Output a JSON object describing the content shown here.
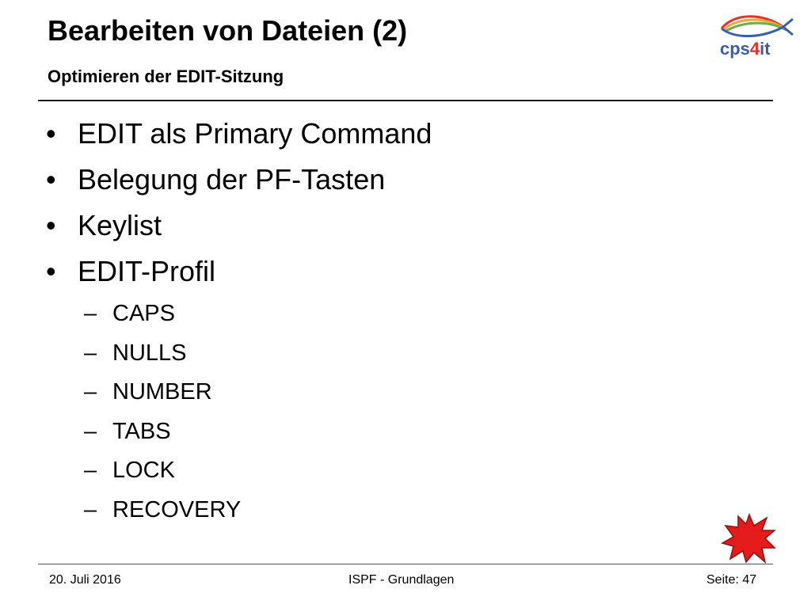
{
  "slide": {
    "title": "Bearbeiten von Dateien (2)",
    "subtitle": "Optimieren der EDIT-Sitzung",
    "logo": {
      "text_left": "cps",
      "text_digit": "4",
      "text_right": "it",
      "icon": "fish-swoosh-logo"
    },
    "bullet_marker": "•",
    "dash_marker": "–",
    "bullets": [
      "EDIT als Primary Command",
      "Belegung der PF-Tasten",
      "Keylist",
      "EDIT-Profil"
    ],
    "sub_bullets": [
      "CAPS",
      "NULLS",
      "NUMBER",
      "TABS",
      "LOCK",
      "RECOVERY"
    ],
    "decoration": "red-starburst-icon"
  },
  "footer": {
    "date": "20. Juli 2016",
    "center": "ISPF - Grundlagen",
    "page": "Seite: 47"
  },
  "colors": {
    "text": "#000000",
    "logo_blue": "#3a5fb0",
    "logo_red": "#e8302a",
    "star_red": "#e31b1b"
  }
}
